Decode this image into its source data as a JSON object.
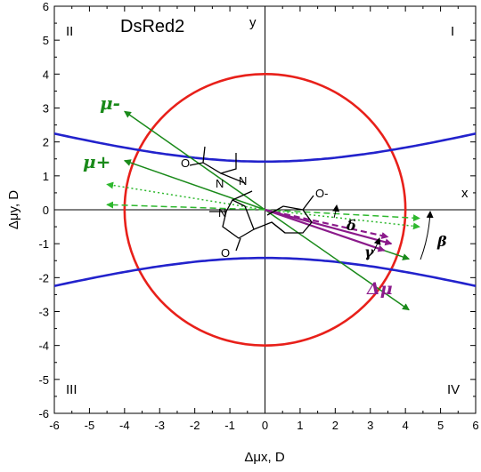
{
  "chart_data": {
    "type": "scatter",
    "title": "DsRed2",
    "xlabel": "Δμx, D",
    "ylabel": "Δμy, D",
    "xlim": [
      -6,
      6
    ],
    "ylim": [
      -6,
      6
    ],
    "ticks": [
      "-6",
      "-5",
      "-4",
      "-3",
      "-2",
      "-1",
      "0",
      "1",
      "2",
      "3",
      "4",
      "5",
      "6"
    ],
    "axis_letters": {
      "x": "x",
      "y": "y"
    },
    "quadrants": {
      "I": "I",
      "II": "II",
      "III": "III",
      "IV": "IV"
    },
    "labels": {
      "mu_minus": "μ-",
      "mu_plus": "μ+",
      "delta_mu": "Δμ",
      "delta": "δ",
      "beta": "β",
      "gamma": "γ"
    },
    "circle": {
      "radius": 4,
      "color": "#e8201a"
    },
    "hyperbola": {
      "vertex": 1.42,
      "color": "#2222cc"
    },
    "vectors": [
      {
        "label": "μ-",
        "color": "#1a8a1a",
        "x": -4.0,
        "y": 2.9,
        "style": "solid"
      },
      {
        "label": "μ+",
        "color": "#1a8a1a",
        "x": -4.0,
        "y": 1.45,
        "style": "solid"
      },
      {
        "label": "Δμ",
        "color": "#1a8a1a",
        "x": 4.1,
        "y": -2.95,
        "style": "solid"
      },
      {
        "label": "",
        "color": "#1a8a1a",
        "x": 4.1,
        "y": -1.45,
        "style": "solid"
      },
      {
        "label": "",
        "color": "#2eb82e",
        "x": -4.5,
        "y": 0.75,
        "style": "dotted"
      },
      {
        "label": "",
        "color": "#2eb82e",
        "x": -4.5,
        "y": 0.15,
        "style": "dashed"
      },
      {
        "label": "",
        "color": "#2eb82e",
        "x": 4.4,
        "y": -0.5,
        "style": "dotted"
      },
      {
        "label": "",
        "color": "#2eb82e",
        "x": 4.4,
        "y": -0.25,
        "style": "dashed"
      },
      {
        "label": "",
        "color": "#8b1a8b",
        "x": 3.6,
        "y": -1.0,
        "style": "solid"
      },
      {
        "label": "",
        "color": "#8b1a8b",
        "x": 3.4,
        "y": -1.2,
        "style": "solid"
      },
      {
        "label": "",
        "color": "#8b1a8b",
        "x": 3.5,
        "y": -0.8,
        "style": "dashed"
      }
    ],
    "molecule_labels": {
      "O1": "O",
      "N1": "N",
      "N2": "N",
      "O2": "O",
      "O3": "O",
      "N3": "N",
      "O4": "O-"
    }
  }
}
